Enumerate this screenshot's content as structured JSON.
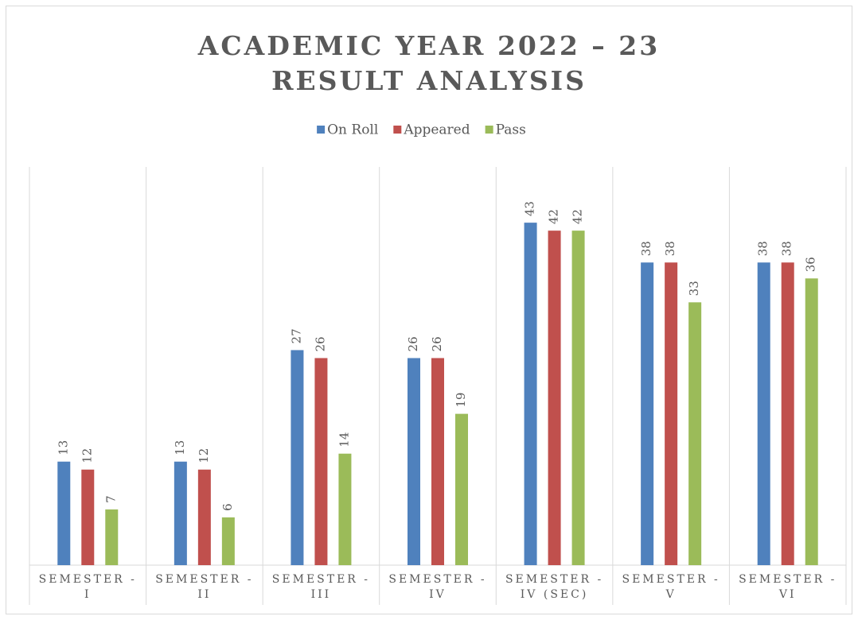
{
  "chart_data": {
    "type": "bar",
    "title": [
      "ACADEMIC YEAR 2022 – 23",
      "RESULT ANALYSIS"
    ],
    "categories": [
      "SEMESTER -\nI",
      "SEMESTER -\nII",
      "SEMESTER -\nIII",
      "SEMESTER -\nIV",
      "SEMESTER -\nIV (SEC)",
      "SEMESTER -\nV",
      "SEMESTER -\nVI"
    ],
    "series": [
      {
        "name": "On Roll",
        "color": "#4f81bd",
        "values": [
          13,
          13,
          27,
          26,
          43,
          38,
          38
        ]
      },
      {
        "name": "Appeared",
        "color": "#c0504d",
        "values": [
          12,
          12,
          26,
          26,
          42,
          38,
          38
        ]
      },
      {
        "name": "Pass",
        "color": "#9bbb59",
        "values": [
          7,
          6,
          14,
          19,
          42,
          33,
          36
        ]
      }
    ],
    "ylim": [
      0,
      50
    ],
    "legend": "top"
  }
}
